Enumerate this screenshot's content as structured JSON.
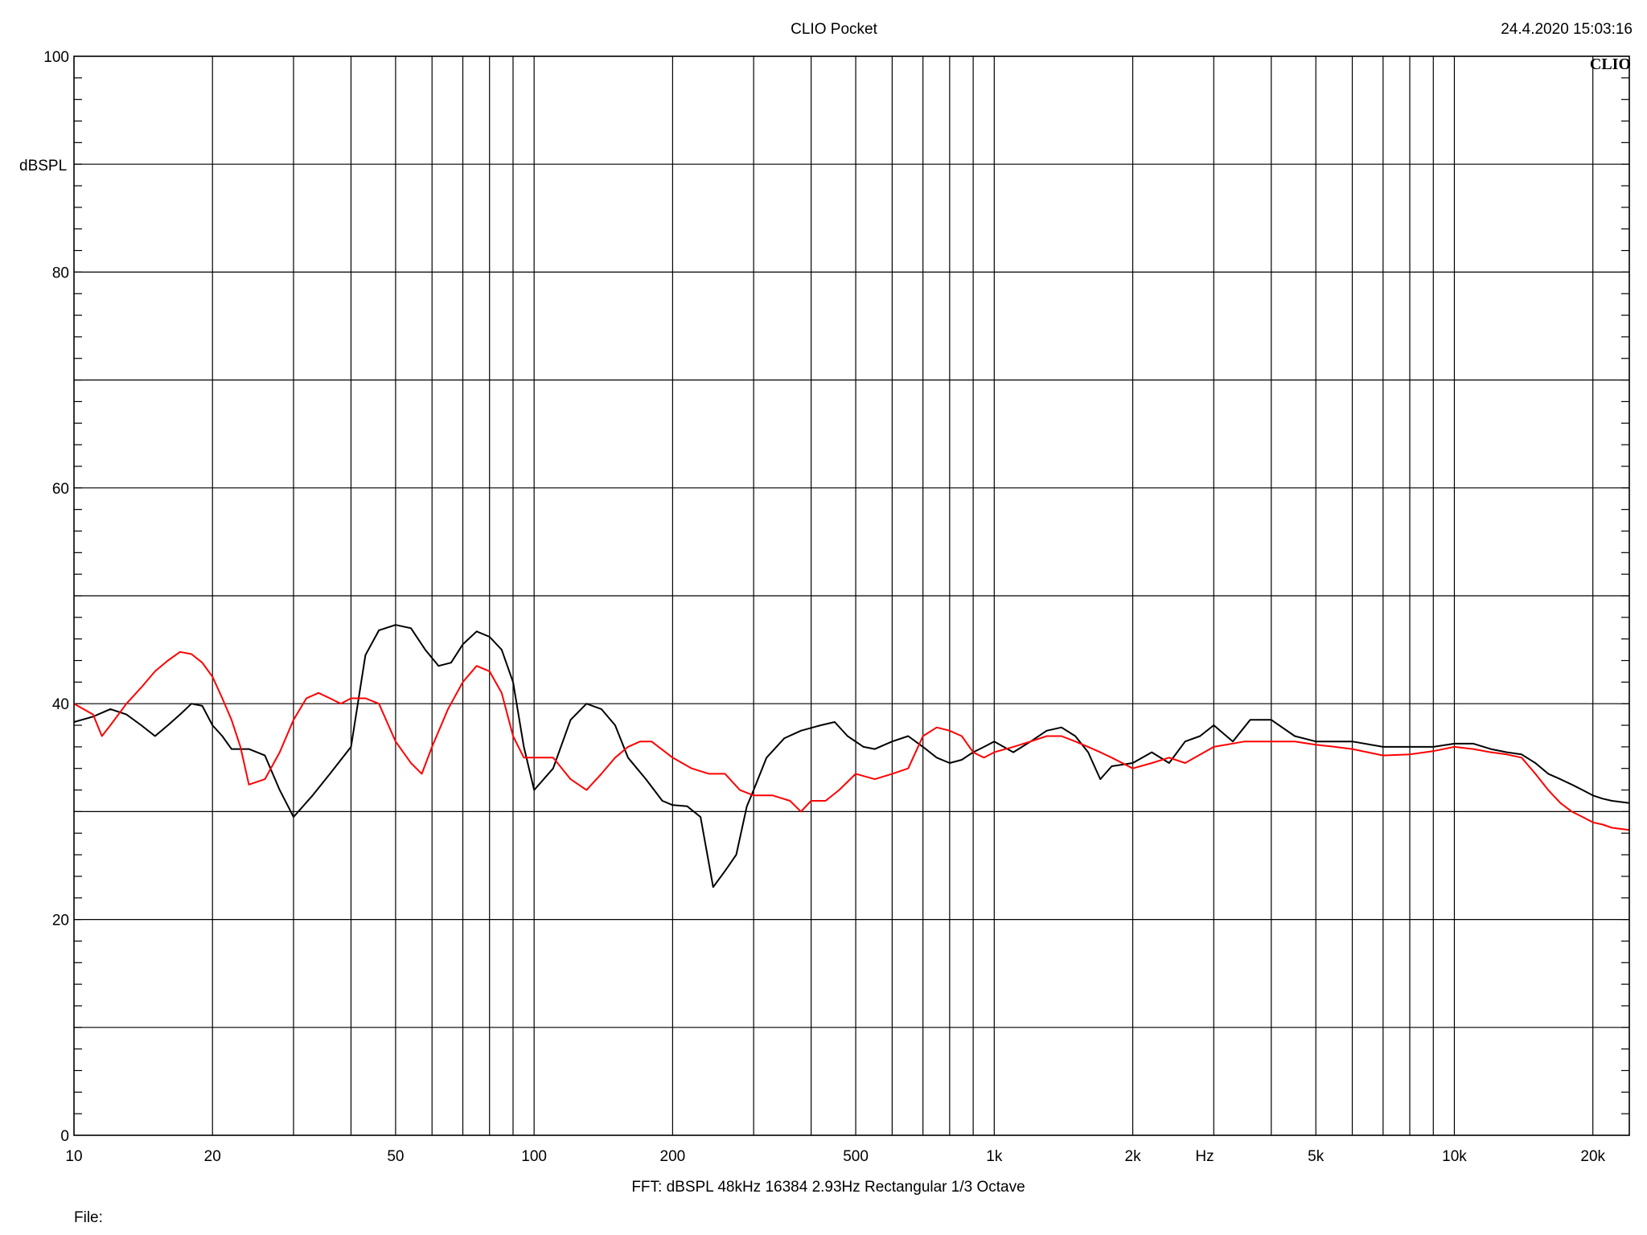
{
  "header": {
    "title": "CLIO Pocket",
    "timestamp": "24.4.2020 15:03:16",
    "brand": "CLIO"
  },
  "footer": {
    "settings": "FFT:  dBSPL  48kHz   16384  2.93Hz  Rectangular  1/3 Octave",
    "file_label": "File:"
  },
  "chart_data": {
    "type": "line",
    "xscale": "log",
    "xlim": [
      10,
      24000
    ],
    "ylim": [
      0,
      100
    ],
    "ylabel": "dBSPL",
    "xlabel": "Hz",
    "y_ticks": [
      0,
      20,
      40,
      60,
      80,
      100
    ],
    "y_tick_labels": [
      "0",
      "20",
      "40",
      "60",
      "80",
      "100"
    ],
    "x_ticks": [
      10,
      20,
      50,
      100,
      200,
      500,
      1000,
      2000,
      5000,
      10000,
      20000
    ],
    "x_tick_labels": [
      "10",
      "20",
      "50",
      "100",
      "200",
      "500",
      "1k",
      "2k",
      "5k",
      "10k",
      "20k"
    ],
    "grid": true,
    "series": [
      {
        "color": "#000000",
        "x": [
          10,
          11,
          12,
          13,
          14,
          15,
          16,
          17,
          18,
          19,
          20,
          21,
          22,
          24,
          26,
          28,
          30,
          33,
          36,
          40,
          43,
          46,
          50,
          54,
          58,
          62,
          66,
          70,
          75,
          80,
          85,
          90,
          95,
          100,
          110,
          120,
          130,
          140,
          150,
          160,
          175,
          190,
          200,
          215,
          230,
          245,
          260,
          275,
          290,
          300,
          320,
          350,
          380,
          420,
          450,
          480,
          520,
          550,
          600,
          650,
          700,
          750,
          800,
          850,
          900,
          950,
          1000,
          1100,
          1200,
          1300,
          1400,
          1500,
          1600,
          1700,
          1800,
          2000,
          2200,
          2400,
          2600,
          2800,
          3000,
          3300,
          3600,
          4000,
          4500,
          5000,
          5500,
          6000,
          7000,
          8000,
          9000,
          10000,
          11000,
          12000,
          13000,
          14000,
          15000,
          16000,
          17000,
          18000,
          19000,
          20000,
          21000,
          22000,
          24000
        ],
        "values": [
          38.3,
          38.8,
          39.5,
          39.0,
          38.0,
          37.0,
          38.0,
          39.0,
          40.0,
          39.8,
          38.0,
          37.0,
          35.8,
          35.8,
          35.2,
          32.0,
          29.5,
          31.5,
          33.5,
          36.0,
          44.5,
          46.8,
          47.3,
          47.0,
          45.0,
          43.5,
          43.8,
          45.5,
          46.7,
          46.2,
          45.0,
          42.0,
          36.0,
          32.0,
          34.0,
          38.5,
          40.0,
          39.5,
          38.0,
          35.0,
          33.0,
          31.0,
          30.6,
          30.5,
          29.5,
          23.0,
          24.5,
          26.0,
          30.5,
          32.0,
          35.0,
          36.8,
          37.5,
          38.0,
          38.3,
          37.0,
          36.0,
          35.8,
          36.5,
          37.0,
          36.0,
          35.0,
          34.5,
          34.8,
          35.5,
          36.0,
          36.5,
          35.5,
          36.5,
          37.5,
          37.8,
          37.0,
          35.5,
          33.0,
          34.2,
          34.5,
          35.5,
          34.5,
          36.5,
          37.0,
          38.0,
          36.5,
          38.5,
          38.5,
          37.0,
          36.5,
          36.5,
          36.5,
          36.0,
          36.0,
          36.0,
          36.3,
          36.3,
          35.8,
          35.5,
          35.3,
          34.5,
          33.5,
          33.0,
          32.5,
          32.0,
          31.5,
          31.2,
          31.0,
          30.8
        ]
      },
      {
        "color": "#ff0000",
        "x": [
          10,
          11,
          11.5,
          12,
          13,
          14,
          15,
          16,
          17,
          18,
          19,
          20,
          21,
          22,
          23,
          24,
          26,
          28,
          30,
          32,
          34,
          36,
          38,
          40,
          43,
          46,
          50,
          54,
          57,
          60,
          65,
          70,
          75,
          80,
          85,
          90,
          95,
          100,
          110,
          120,
          130,
          140,
          150,
          160,
          170,
          180,
          200,
          220,
          240,
          260,
          280,
          300,
          330,
          360,
          380,
          400,
          430,
          460,
          500,
          550,
          600,
          650,
          700,
          750,
          800,
          850,
          900,
          950,
          1000,
          1100,
          1200,
          1300,
          1400,
          1500,
          1600,
          1700,
          1800,
          2000,
          2200,
          2400,
          2600,
          3000,
          3500,
          4000,
          4500,
          5000,
          5500,
          6000,
          7000,
          8000,
          9000,
          10000,
          11000,
          12000,
          13000,
          14000,
          15000,
          16000,
          17000,
          18000,
          19000,
          20000,
          21000,
          22000,
          24000
        ],
        "values": [
          40.0,
          39.0,
          37.0,
          38.0,
          40.0,
          41.5,
          43.0,
          44.0,
          44.8,
          44.6,
          43.8,
          42.5,
          40.5,
          38.5,
          36.0,
          32.5,
          33.0,
          35.5,
          38.5,
          40.5,
          41.0,
          40.5,
          40.0,
          40.5,
          40.5,
          40.0,
          36.5,
          34.5,
          33.5,
          36.0,
          39.5,
          42.0,
          43.5,
          43.0,
          41.0,
          37.0,
          35.0,
          35.0,
          35.0,
          33.0,
          32.0,
          33.5,
          35.0,
          36.0,
          36.5,
          36.5,
          35.0,
          34.0,
          33.5,
          33.5,
          32.0,
          31.5,
          31.5,
          31.0,
          30.0,
          31.0,
          31.0,
          32.0,
          33.5,
          33.0,
          33.5,
          34.0,
          37.0,
          37.8,
          37.5,
          37.0,
          35.5,
          35.0,
          35.5,
          36.0,
          36.5,
          37.0,
          37.0,
          36.5,
          36.0,
          35.5,
          35.0,
          34.0,
          34.5,
          35.0,
          34.5,
          36.0,
          36.5,
          36.5,
          36.5,
          36.2,
          36.0,
          35.8,
          35.2,
          35.3,
          35.6,
          36.0,
          35.8,
          35.5,
          35.3,
          35.0,
          33.5,
          32.0,
          30.8,
          30.0,
          29.5,
          29.0,
          28.8,
          28.5,
          28.3
        ]
      }
    ]
  }
}
